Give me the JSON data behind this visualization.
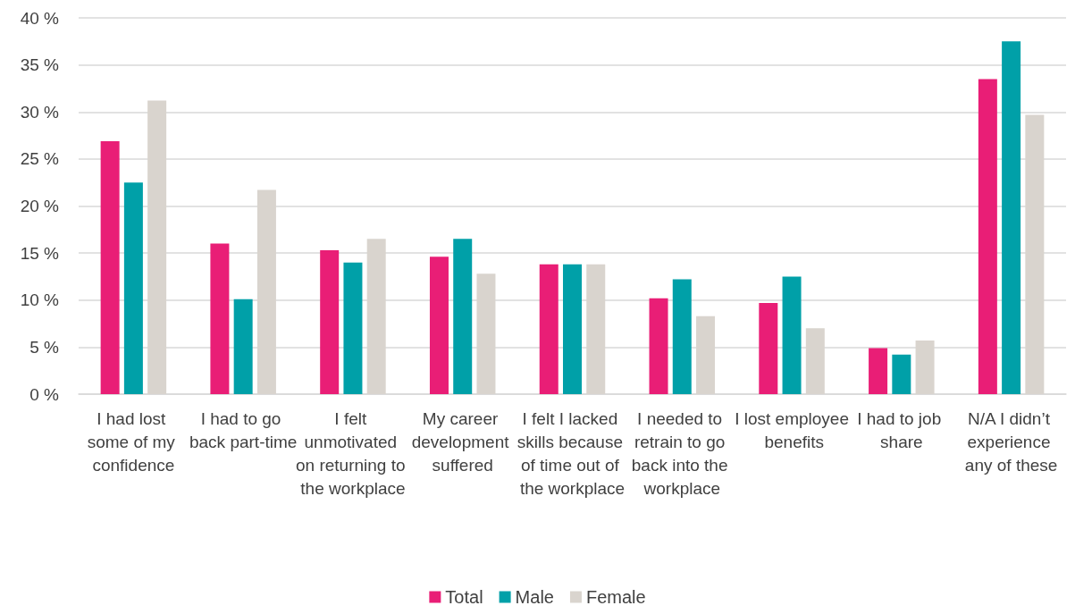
{
  "chart_data": {
    "type": "bar",
    "categories": [
      "I had lost some of my confidence",
      "I had to go back part-time",
      "I felt unmotivated on returning to the workplace",
      "My career development suffered",
      "I felt I lacked skills because of time out of the workplace",
      "I needed to retrain to go back into the workplace",
      "I lost employee benefits",
      "I had to job share",
      "N/A I didn’t experience any of these"
    ],
    "series": [
      {
        "name": "Total",
        "color": "#e91e76",
        "values": [
          26.9,
          16.0,
          15.3,
          14.6,
          13.8,
          10.2,
          9.7,
          4.9,
          33.5
        ]
      },
      {
        "name": "Male",
        "color": "#00a0a8",
        "values": [
          22.5,
          10.1,
          14.0,
          16.5,
          13.8,
          12.2,
          12.5,
          4.2,
          37.5
        ]
      },
      {
        "name": "Female",
        "color": "#d9d4ce",
        "values": [
          31.2,
          21.7,
          16.5,
          12.8,
          13.8,
          8.3,
          7.0,
          5.7,
          29.7
        ]
      }
    ],
    "ylim": [
      0,
      40
    ],
    "yticks": [
      {
        "value": 0,
        "label": "0 %"
      },
      {
        "value": 5,
        "label": "5 %"
      },
      {
        "value": 10,
        "label": "10 %"
      },
      {
        "value": 15,
        "label": "15 %"
      },
      {
        "value": 20,
        "label": "20 %"
      },
      {
        "value": 25,
        "label": "25 %"
      },
      {
        "value": 30,
        "label": "30 %"
      },
      {
        "value": 35,
        "label": "35 %"
      },
      {
        "value": 40,
        "label": "40 %"
      }
    ],
    "grid": "y",
    "legend": "bottom"
  }
}
